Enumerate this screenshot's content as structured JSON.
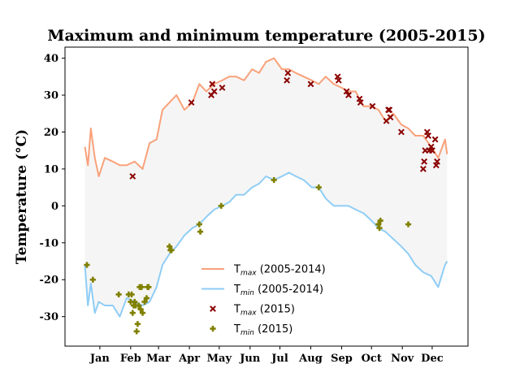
{
  "chart_data": {
    "type": "line",
    "title": "Maximum and minimum temperature (2005-2015)",
    "xlabel": "",
    "ylabel": "Temperature (°C)",
    "xlim": [
      -20,
      385
    ],
    "ylim": [
      -38,
      43
    ],
    "yticks": [
      -30,
      -20,
      -10,
      0,
      10,
      20,
      30,
      40
    ],
    "month_ticks": [
      {
        "label": "Jan",
        "day": 15
      },
      {
        "label": "Feb",
        "day": 46
      },
      {
        "label": "Mar",
        "day": 74
      },
      {
        "label": "Apr",
        "day": 105
      },
      {
        "label": "May",
        "day": 135
      },
      {
        "label": "Jun",
        "day": 166
      },
      {
        "label": "Jul",
        "day": 196
      },
      {
        "label": "Aug",
        "day": 227
      },
      {
        "label": "Sep",
        "day": 258
      },
      {
        "label": "Oct",
        "day": 288
      },
      {
        "label": "Nov",
        "day": 319
      },
      {
        "label": "Dec",
        "day": 349
      }
    ],
    "grid": false,
    "legend_position": "lower-center",
    "fill_between": {
      "color": "#f5f5f5"
    },
    "series": [
      {
        "name": "T_max (2005-2014)",
        "color": "#f9a17a",
        "kind": "line",
        "x": [
          0,
          3,
          6,
          10,
          14,
          20,
          28,
          35,
          42,
          50,
          58,
          65,
          72,
          78,
          85,
          92,
          100,
          108,
          115,
          122,
          130,
          138,
          145,
          152,
          160,
          168,
          175,
          182,
          190,
          198,
          205,
          212,
          220,
          228,
          235,
          242,
          250,
          258,
          265,
          272,
          280,
          288,
          295,
          302,
          310,
          318,
          325,
          332,
          340,
          348,
          355,
          362,
          364
        ],
        "y": [
          16,
          11,
          21,
          13,
          8,
          13,
          12,
          11,
          11,
          12,
          10,
          17,
          18,
          26,
          28,
          30,
          26,
          28,
          33,
          31,
          33,
          34,
          35,
          35,
          34,
          37,
          36,
          39,
          40,
          37,
          37,
          36,
          35,
          34,
          33,
          35,
          33,
          32,
          31,
          31,
          27,
          27,
          26,
          23,
          25,
          22,
          21,
          19,
          19,
          16,
          13,
          18,
          14
        ]
      },
      {
        "name": "T_min (2005-2014)",
        "color": "#8fcdf5",
        "kind": "line",
        "x": [
          0,
          3,
          6,
          10,
          14,
          20,
          28,
          35,
          42,
          50,
          58,
          65,
          72,
          78,
          85,
          92,
          100,
          108,
          115,
          122,
          130,
          138,
          145,
          152,
          160,
          168,
          175,
          182,
          190,
          198,
          205,
          212,
          220,
          228,
          235,
          242,
          250,
          258,
          265,
          272,
          280,
          288,
          295,
          302,
          310,
          318,
          325,
          332,
          340,
          348,
          355,
          362,
          364
        ],
        "y": [
          -16,
          -27,
          -21,
          -29,
          -26,
          -27,
          -27,
          -30,
          -25,
          -26,
          -27,
          -26,
          -22,
          -16,
          -13,
          -11,
          -8,
          -6,
          -5,
          -3,
          -1,
          0,
          1,
          3,
          3,
          5,
          6,
          8,
          7,
          8,
          9,
          8,
          7,
          5,
          5,
          2,
          0,
          0,
          0,
          -1,
          -2,
          -4,
          -6,
          -7,
          -9,
          -11,
          -13,
          -16,
          -18,
          -19,
          -22,
          -16,
          -15
        ]
      },
      {
        "name": "T_max (2015)",
        "color": "#8b0000",
        "kind": "scatter",
        "marker": "x",
        "points": [
          [
            48,
            8
          ],
          [
            107,
            28
          ],
          [
            127,
            30
          ],
          [
            128,
            33
          ],
          [
            130,
            31
          ],
          [
            138,
            32
          ],
          [
            203,
            34
          ],
          [
            204,
            36
          ],
          [
            227,
            33
          ],
          [
            254,
            35
          ],
          [
            255,
            34
          ],
          [
            263,
            31
          ],
          [
            265,
            30
          ],
          [
            276,
            29
          ],
          [
            277,
            28
          ],
          [
            289,
            27
          ],
          [
            303,
            23
          ],
          [
            305,
            26
          ],
          [
            306,
            26
          ],
          [
            307,
            24
          ],
          [
            318,
            20
          ],
          [
            340,
            10
          ],
          [
            341,
            12
          ],
          [
            342,
            15
          ],
          [
            344,
            20
          ],
          [
            345,
            19
          ],
          [
            346,
            15
          ],
          [
            348,
            16
          ],
          [
            349,
            15
          ],
          [
            352,
            18
          ],
          [
            353,
            11
          ],
          [
            354,
            12
          ]
        ]
      },
      {
        "name": "T_min (2015)",
        "color": "#808000",
        "kind": "scatter",
        "marker": "P",
        "points": [
          [
            2,
            -16
          ],
          [
            8,
            -20
          ],
          [
            34,
            -24
          ],
          [
            44,
            -24
          ],
          [
            46,
            -26
          ],
          [
            47,
            -24
          ],
          [
            48,
            -29
          ],
          [
            49,
            -27
          ],
          [
            50,
            -26
          ],
          [
            51,
            -27
          ],
          [
            52,
            -34
          ],
          [
            53,
            -32
          ],
          [
            54,
            -27
          ],
          [
            55,
            -22
          ],
          [
            56,
            -28
          ],
          [
            57,
            -22
          ],
          [
            58,
            -29
          ],
          [
            60,
            -26
          ],
          [
            62,
            -25
          ],
          [
            63,
            -22
          ],
          [
            64,
            -22
          ],
          [
            85,
            -11
          ],
          [
            86,
            -12
          ],
          [
            87,
            -12
          ],
          [
            115,
            -5
          ],
          [
            116,
            -7
          ],
          [
            137,
            0
          ],
          [
            190,
            7
          ],
          [
            235,
            5
          ],
          [
            295,
            -5
          ],
          [
            296,
            -6
          ],
          [
            297,
            -4
          ],
          [
            325,
            -5
          ]
        ]
      }
    ],
    "legend": [
      {
        "kind": "line",
        "color": "#f9a17a",
        "base": "T",
        "sub": "max",
        "tail": " (2005-2014)"
      },
      {
        "kind": "line",
        "color": "#8fcdf5",
        "base": "T",
        "sub": "min",
        "tail": " (2005-2014)"
      },
      {
        "kind": "x",
        "color": "#8b0000",
        "base": "T",
        "sub": "max",
        "tail": " (2015)"
      },
      {
        "kind": "plus",
        "color": "#808000",
        "base": "T",
        "sub": "min",
        "tail": " (2015)"
      }
    ]
  }
}
